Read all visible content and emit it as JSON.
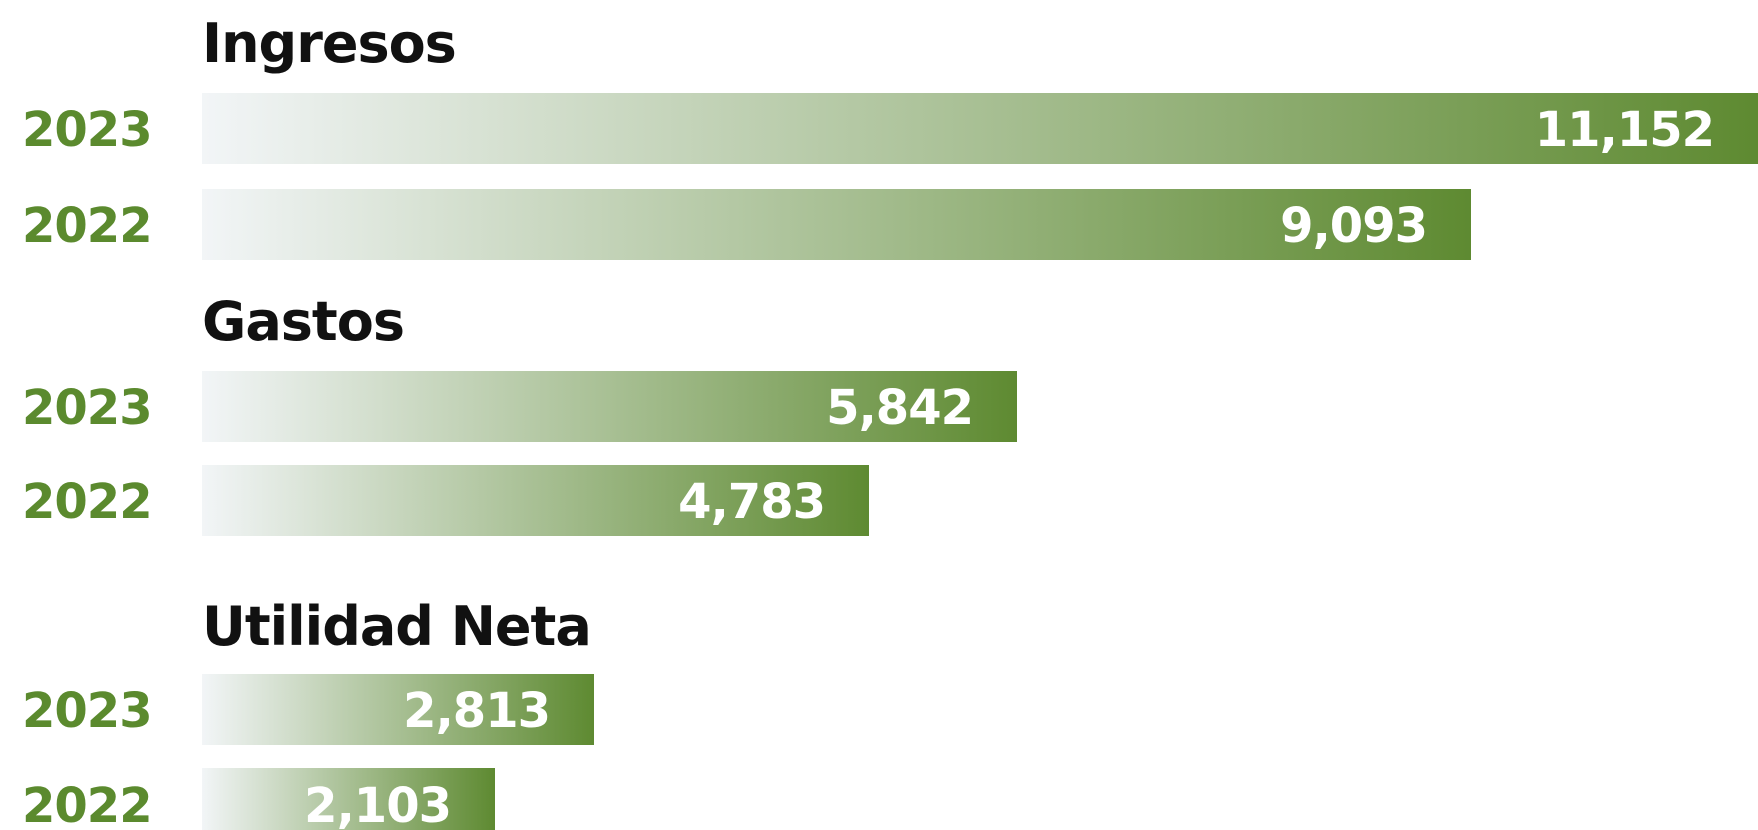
{
  "chart_data": {
    "type": "bar",
    "orientation": "horizontal",
    "colors": {
      "bar_start": "#f2f5f7",
      "bar_end": "#5e8a31",
      "year_label": "#5b8a2e",
      "title": "#111111",
      "value_label": "#ffffff"
    },
    "groups": [
      {
        "title": "Ingresos",
        "bars": [
          {
            "year": "2023",
            "value": 11152,
            "label": "11,152"
          },
          {
            "year": "2022",
            "value": 9093,
            "label": "9,093"
          }
        ]
      },
      {
        "title": "Gastos",
        "bars": [
          {
            "year": "2023",
            "value": 5842,
            "label": "5,842"
          },
          {
            "year": "2022",
            "value": 4783,
            "label": "4,783"
          }
        ]
      },
      {
        "title": "Utilidad Neta",
        "bars": [
          {
            "year": "2023",
            "value": 2813,
            "label": "2,813"
          },
          {
            "year": "2022",
            "value": 2103,
            "label": "2,103"
          }
        ]
      }
    ],
    "xlim": [
      0,
      11152
    ],
    "grid": false,
    "legend": "none"
  }
}
